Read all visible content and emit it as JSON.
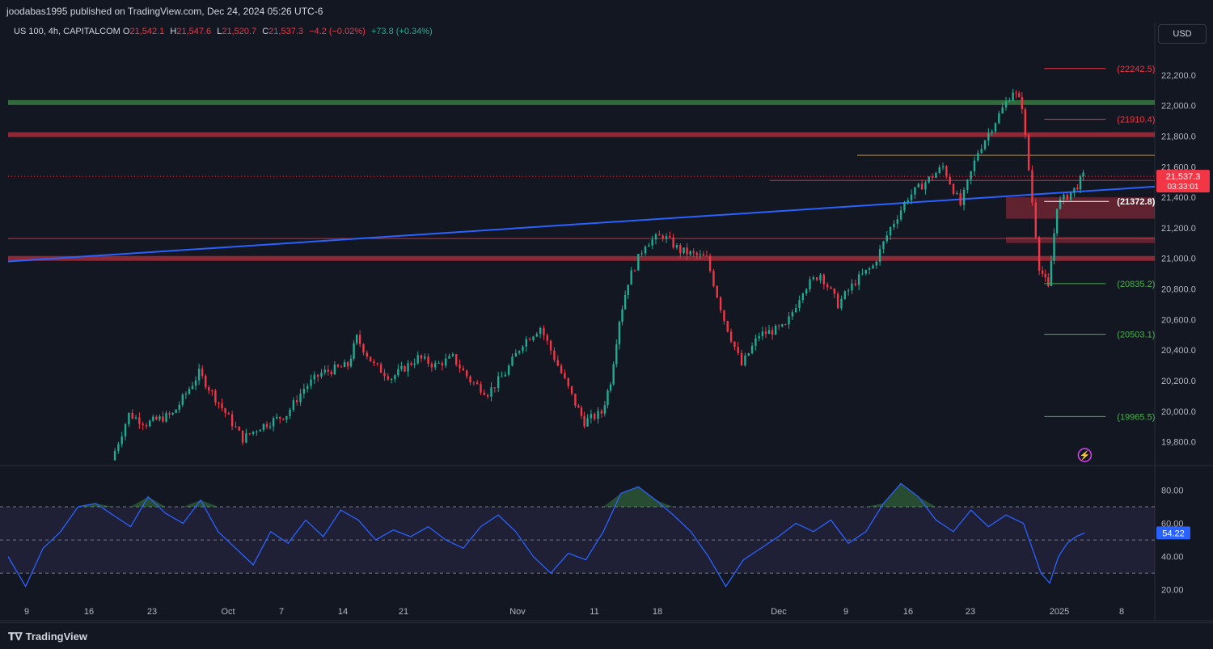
{
  "publisher_line": "joodabas1995 published on TradingView.com, Dec 24, 2024 05:26 UTC-6",
  "legend": {
    "symbol": "US 100, 4h, CAPITALCOM",
    "o_label": "O",
    "o": "21,542.1",
    "h_label": "H",
    "h": "21,547.6",
    "l_label": "L",
    "l": "21,520.7",
    "c_label": "C",
    "c": "21,537.3",
    "change": "−4.2 (−0.02%)",
    "extra": "+73.8 (+0.34%)"
  },
  "currency_button": "USD",
  "price_badge": {
    "price": "21,537.3",
    "countdown": "03:33:01"
  },
  "rsi_badge": "54.22",
  "brand": "TradingView",
  "colors": {
    "background": "#131722",
    "up": "#22ab94",
    "down": "#f23645",
    "trendline": "#2962ff",
    "resistance": "#f23645",
    "green_zone": "#4caf50",
    "rsi_line": "#2962ff",
    "rsi_band": "#7e57c2",
    "fib_red": "#f23645",
    "fib_green": "#4caf50"
  },
  "chart_data": [
    {
      "type": "candlestick",
      "title": "",
      "symbol": "US 100",
      "timeframe": "4h",
      "exchange": "CAPITALCOM",
      "y_range": [
        19650,
        22400
      ],
      "y_ticks": [
        "22,200.0",
        "22,000.0",
        "21,800.0",
        "21,600.0",
        "21,400.0",
        "21,200.0",
        "21,000.0",
        "20,800.0",
        "20,600.0",
        "20,400.0",
        "20,200.0",
        "20,000.0",
        "19,800.0"
      ],
      "y_tick_values": [
        22200,
        22000,
        21800,
        21600,
        21400,
        21200,
        21000,
        20800,
        20600,
        20400,
        20200,
        20000,
        19800
      ],
      "x_ticks": [
        "9",
        "16",
        "23",
        "Oct",
        "7",
        "14",
        "21",
        "Nov",
        "11",
        "18",
        "Dec",
        "9",
        "16",
        "23",
        "2025",
        "8"
      ],
      "price_path": [
        {
          "date": "2024-09-17",
          "close": 19680
        },
        {
          "date": "2024-09-19",
          "close": 19980
        },
        {
          "date": "2024-09-21",
          "close": 19920
        },
        {
          "date": "2024-09-24",
          "close": 19980
        },
        {
          "date": "2024-09-27",
          "close": 20250
        },
        {
          "date": "2024-09-30",
          "close": 19990
        },
        {
          "date": "2024-10-02",
          "close": 19820
        },
        {
          "date": "2024-10-04",
          "close": 19900
        },
        {
          "date": "2024-10-07",
          "close": 19980
        },
        {
          "date": "2024-10-09",
          "close": 20150
        },
        {
          "date": "2024-10-11",
          "close": 20250
        },
        {
          "date": "2024-10-14",
          "close": 20300
        },
        {
          "date": "2024-10-15",
          "close": 20480
        },
        {
          "date": "2024-10-17",
          "close": 20300
        },
        {
          "date": "2024-10-19",
          "close": 20220
        },
        {
          "date": "2024-10-22",
          "close": 20350
        },
        {
          "date": "2024-10-24",
          "close": 20300
        },
        {
          "date": "2024-10-26",
          "close": 20350
        },
        {
          "date": "2024-10-28",
          "close": 20200
        },
        {
          "date": "2024-10-30",
          "close": 20120
        },
        {
          "date": "2024-11-01",
          "close": 20250
        },
        {
          "date": "2024-11-03",
          "close": 20450
        },
        {
          "date": "2024-11-05",
          "close": 20550
        },
        {
          "date": "2024-11-07",
          "close": 20300
        },
        {
          "date": "2024-11-09",
          "close": 20050
        },
        {
          "date": "2024-11-10",
          "close": 19930
        },
        {
          "date": "2024-11-12",
          "close": 19990
        },
        {
          "date": "2024-11-13",
          "close": 20200
        },
        {
          "date": "2024-11-14",
          "close": 20600
        },
        {
          "date": "2024-11-15",
          "close": 20850
        },
        {
          "date": "2024-11-17",
          "close": 21100
        },
        {
          "date": "2024-11-19",
          "close": 21150
        },
        {
          "date": "2024-11-21",
          "close": 21050
        },
        {
          "date": "2024-11-24",
          "close": 21000
        },
        {
          "date": "2024-11-26",
          "close": 20600
        },
        {
          "date": "2024-11-28",
          "close": 20300
        },
        {
          "date": "2024-11-30",
          "close": 20500
        },
        {
          "date": "2024-12-03",
          "close": 20550
        },
        {
          "date": "2024-12-05",
          "close": 20800
        },
        {
          "date": "2024-12-07",
          "close": 20900
        },
        {
          "date": "2024-12-09",
          "close": 20700
        },
        {
          "date": "2024-12-11",
          "close": 20850
        },
        {
          "date": "2024-12-13",
          "close": 20950
        },
        {
          "date": "2024-12-15",
          "close": 21200
        },
        {
          "date": "2024-12-17",
          "close": 21400
        },
        {
          "date": "2024-12-19",
          "close": 21500
        },
        {
          "date": "2024-12-21",
          "close": 21600
        },
        {
          "date": "2024-12-23",
          "close": 21350
        },
        {
          "date": "2024-12-25",
          "close": 21700
        },
        {
          "date": "2024-12-27",
          "close": 21900
        },
        {
          "date": "2024-12-29",
          "close": 22100
        },
        {
          "date": "2024-12-30",
          "close": 22000
        },
        {
          "date": "2025-01-01",
          "close": 20950
        },
        {
          "date": "2025-01-02",
          "close": 20800
        },
        {
          "date": "2025-01-03",
          "close": 21350
        },
        {
          "date": "2025-01-05",
          "close": 21450
        },
        {
          "date": "2025-01-06",
          "close": 21537.3
        }
      ],
      "trendline": [
        {
          "date": "2024-09-05",
          "price": 20980
        },
        {
          "date": "2025-01-14",
          "price": 21470
        }
      ],
      "horizontal_levels": [
        {
          "price": 22020,
          "color": "#4caf50",
          "kind": "zone"
        },
        {
          "price": 21810,
          "color": "#f23645",
          "kind": "zone"
        },
        {
          "price": 21130,
          "color": "#f23645",
          "kind": "line"
        },
        {
          "price": 21000,
          "color": "#f23645",
          "kind": "zone"
        },
        {
          "price": 21510,
          "color": "#f23645",
          "kind": "line"
        },
        {
          "price": 21675,
          "color": "#d4a55a",
          "kind": "line"
        },
        {
          "price": 21537.3,
          "color": "#f23645",
          "kind": "dotted"
        }
      ],
      "zones": [
        {
          "from": 21260,
          "to": 21400,
          "color": "#f23645"
        },
        {
          "from": 21100,
          "to": 21140,
          "color": "#f23645"
        }
      ],
      "fib_levels": [
        {
          "label": "(22242.5)",
          "price": 22242.5,
          "color": "#f23645"
        },
        {
          "label": "(21910.4)",
          "price": 21910.4,
          "color": "#f23645"
        },
        {
          "label": "(21372.8)",
          "price": 21372.8,
          "color": "#ffffff"
        },
        {
          "label": "(20835.2)",
          "price": 20835.2,
          "color": "#4caf50"
        },
        {
          "label": "(20503.1)",
          "price": 20503.1,
          "color": "#4caf50"
        },
        {
          "label": "(19965.5)",
          "price": 19965.5,
          "color": "#4caf50"
        }
      ]
    },
    {
      "type": "line",
      "title": "",
      "indicator": "RSI",
      "y_range": [
        15,
        88
      ],
      "y_ticks": [
        "80.00",
        "60.00",
        "40.00",
        "20.00"
      ],
      "y_tick_values": [
        80,
        60,
        40,
        20
      ],
      "overbought": 70,
      "midline": 50,
      "oversold": 30,
      "last_value": 54.22,
      "rsi_path": [
        {
          "date": "2024-09-05",
          "v": 40
        },
        {
          "date": "2024-09-07",
          "v": 22
        },
        {
          "date": "2024-09-09",
          "v": 45
        },
        {
          "date": "2024-09-11",
          "v": 55
        },
        {
          "date": "2024-09-13",
          "v": 70
        },
        {
          "date": "2024-09-15",
          "v": 72
        },
        {
          "date": "2024-09-17",
          "v": 65
        },
        {
          "date": "2024-09-19",
          "v": 58
        },
        {
          "date": "2024-09-21",
          "v": 76
        },
        {
          "date": "2024-09-23",
          "v": 66
        },
        {
          "date": "2024-09-25",
          "v": 60
        },
        {
          "date": "2024-09-27",
          "v": 74
        },
        {
          "date": "2024-09-29",
          "v": 55
        },
        {
          "date": "2024-10-01",
          "v": 45
        },
        {
          "date": "2024-10-03",
          "v": 35
        },
        {
          "date": "2024-10-05",
          "v": 55
        },
        {
          "date": "2024-10-07",
          "v": 48
        },
        {
          "date": "2024-10-09",
          "v": 62
        },
        {
          "date": "2024-10-11",
          "v": 52
        },
        {
          "date": "2024-10-13",
          "v": 68
        },
        {
          "date": "2024-10-15",
          "v": 62
        },
        {
          "date": "2024-10-17",
          "v": 50
        },
        {
          "date": "2024-10-19",
          "v": 56
        },
        {
          "date": "2024-10-21",
          "v": 52
        },
        {
          "date": "2024-10-23",
          "v": 58
        },
        {
          "date": "2024-10-25",
          "v": 50
        },
        {
          "date": "2024-10-27",
          "v": 45
        },
        {
          "date": "2024-10-29",
          "v": 58
        },
        {
          "date": "2024-10-31",
          "v": 65
        },
        {
          "date": "2024-11-02",
          "v": 55
        },
        {
          "date": "2024-11-04",
          "v": 40
        },
        {
          "date": "2024-11-06",
          "v": 30
        },
        {
          "date": "2024-11-08",
          "v": 42
        },
        {
          "date": "2024-11-10",
          "v": 38
        },
        {
          "date": "2024-11-12",
          "v": 55
        },
        {
          "date": "2024-11-14",
          "v": 78
        },
        {
          "date": "2024-11-16",
          "v": 82
        },
        {
          "date": "2024-11-18",
          "v": 74
        },
        {
          "date": "2024-11-20",
          "v": 65
        },
        {
          "date": "2024-11-22",
          "v": 55
        },
        {
          "date": "2024-11-24",
          "v": 40
        },
        {
          "date": "2024-11-26",
          "v": 22
        },
        {
          "date": "2024-11-28",
          "v": 38
        },
        {
          "date": "2024-11-30",
          "v": 45
        },
        {
          "date": "2024-12-02",
          "v": 52
        },
        {
          "date": "2024-12-04",
          "v": 60
        },
        {
          "date": "2024-12-06",
          "v": 55
        },
        {
          "date": "2024-12-08",
          "v": 62
        },
        {
          "date": "2024-12-10",
          "v": 48
        },
        {
          "date": "2024-12-12",
          "v": 55
        },
        {
          "date": "2024-12-14",
          "v": 72
        },
        {
          "date": "2024-12-16",
          "v": 84
        },
        {
          "date": "2024-12-18",
          "v": 76
        },
        {
          "date": "2024-12-20",
          "v": 62
        },
        {
          "date": "2024-12-22",
          "v": 55
        },
        {
          "date": "2024-12-24",
          "v": 68
        },
        {
          "date": "2024-12-26",
          "v": 58
        },
        {
          "date": "2024-12-28",
          "v": 65
        },
        {
          "date": "2024-12-30",
          "v": 60
        },
        {
          "date": "2025-01-01",
          "v": 30
        },
        {
          "date": "2025-01-02",
          "v": 24
        },
        {
          "date": "2025-01-03",
          "v": 40
        },
        {
          "date": "2025-01-04",
          "v": 48
        },
        {
          "date": "2025-01-05",
          "v": 52
        },
        {
          "date": "2025-01-06",
          "v": 54.22
        }
      ]
    }
  ]
}
